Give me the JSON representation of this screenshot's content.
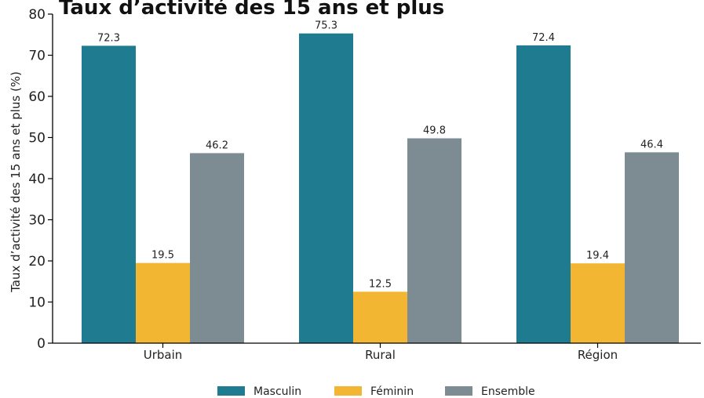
{
  "chart_data": {
    "type": "bar",
    "title": "Taux d’activité des 15 ans et plus",
    "categories": [
      "Urbain",
      "Rural",
      "Région"
    ],
    "series": [
      {
        "name": "Masculin",
        "values": [
          72.3,
          75.3,
          72.4
        ],
        "color": "#1f7b8f"
      },
      {
        "name": "Féminin",
        "values": [
          19.5,
          12.5,
          19.4
        ],
        "color": "#f3b632"
      },
      {
        "name": "Ensemble",
        "values": [
          46.2,
          49.8,
          46.4
        ],
        "color": "#7d8b93"
      }
    ],
    "ylabel": "Taux d’activité des 15 ans et plus (%)",
    "xlabel": "",
    "ylim": [
      0,
      80
    ],
    "yticks": [
      0,
      10,
      20,
      30,
      40,
      50,
      60,
      70,
      80
    ],
    "grid": false,
    "legend_position": "bottom-center"
  }
}
